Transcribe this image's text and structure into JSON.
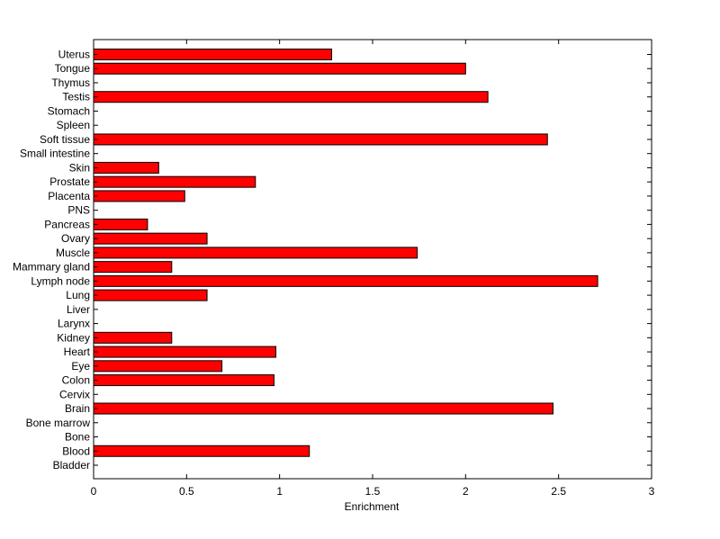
{
  "chart_data": {
    "type": "bar",
    "orientation": "horizontal",
    "xlabel": "Enrichment",
    "ylabel": "",
    "title": "",
    "xlim": [
      0,
      3
    ],
    "xticks": [
      0,
      0.5,
      1,
      1.5,
      2,
      2.5,
      3
    ],
    "xtick_labels": [
      "0",
      "0.5",
      "1",
      "1.5",
      "2",
      "2.5",
      "3"
    ],
    "grid": false,
    "bar_color": "#ff0000",
    "categories": [
      "Uterus",
      "Tongue",
      "Thymus",
      "Testis",
      "Stomach",
      "Spleen",
      "Soft tissue",
      "Small intestine",
      "Skin",
      "Prostate",
      "Placenta",
      "PNS",
      "Pancreas",
      "Ovary",
      "Muscle",
      "Mammary gland",
      "Lymph node",
      "Lung",
      "Liver",
      "Larynx",
      "Kidney",
      "Heart",
      "Eye",
      "Colon",
      "Cervix",
      "Brain",
      "Bone marrow",
      "Bone",
      "Blood",
      "Bladder"
    ],
    "values": [
      1.28,
      2.0,
      0,
      2.12,
      0,
      0,
      2.44,
      0,
      0.35,
      0.87,
      0.49,
      0,
      0.29,
      0.61,
      1.74,
      0.42,
      2.71,
      0.61,
      0,
      0,
      0.42,
      0.98,
      0.69,
      0.97,
      0,
      2.47,
      0,
      0,
      1.16,
      0
    ]
  }
}
